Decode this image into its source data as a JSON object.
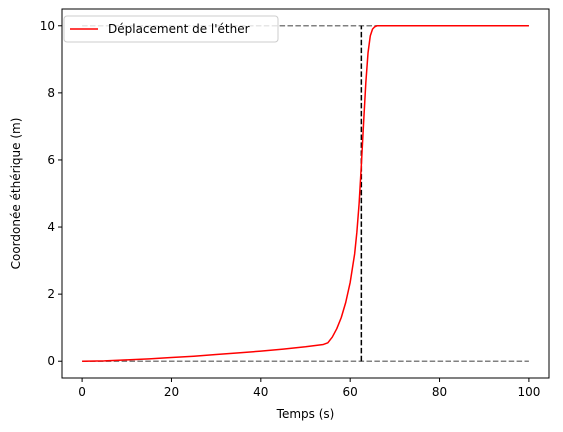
{
  "chart_data": {
    "type": "line",
    "title": "",
    "xlabel": "Temps (s)",
    "ylabel": "Coordonée éthérique (m)",
    "xlim": [
      -4.5,
      104.5
    ],
    "ylim": [
      -0.5,
      10.5
    ],
    "xticks": [
      0,
      20,
      40,
      60,
      80,
      100
    ],
    "yticks": [
      0,
      2,
      4,
      6,
      8,
      10
    ],
    "grid": false,
    "legend_position": "upper left",
    "series": [
      {
        "name": "Déplacement de l'éther",
        "color": "#ff0000",
        "style": "solid",
        "x": [
          0,
          5,
          10,
          15,
          20,
          25,
          30,
          35,
          40,
          45,
          50,
          54,
          55,
          56,
          57,
          58,
          59,
          60,
          61,
          61.5,
          62,
          62.5,
          63,
          63.5,
          64,
          64.5,
          65,
          65.5,
          66,
          67,
          70,
          80,
          90,
          100
        ],
        "y": [
          0,
          0.01,
          0.04,
          0.07,
          0.11,
          0.15,
          0.2,
          0.25,
          0.3,
          0.36,
          0.43,
          0.5,
          0.55,
          0.72,
          0.97,
          1.3,
          1.75,
          2.35,
          3.2,
          3.85,
          4.7,
          5.85,
          7.1,
          8.3,
          9.2,
          9.7,
          9.9,
          9.97,
          10,
          10,
          10,
          10,
          10,
          10
        ]
      }
    ],
    "reference_lines": [
      {
        "kind": "horizontal",
        "y": 10,
        "x": [
          0,
          100
        ],
        "color": "#808080",
        "style": "dashed"
      },
      {
        "kind": "horizontal",
        "y": 0,
        "x": [
          0,
          100
        ],
        "color": "#808080",
        "style": "dashed"
      },
      {
        "kind": "vertical",
        "x": 62.5,
        "y": [
          0,
          10
        ],
        "color": "#000000",
        "style": "dashed"
      }
    ]
  }
}
